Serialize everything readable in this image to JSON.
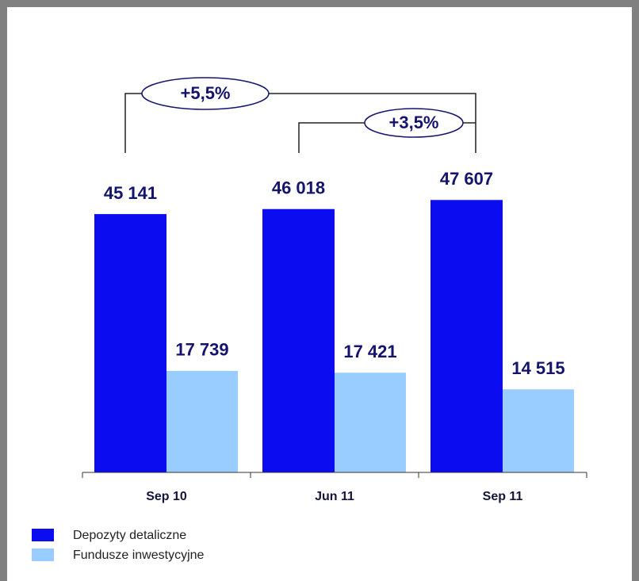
{
  "chart_data": {
    "type": "bar",
    "categories": [
      "Sep 10",
      "Jun 11",
      "Sep 11"
    ],
    "series": [
      {
        "name": "Depozyty detaliczne",
        "color": "#0c0cf0",
        "values": [
          45141,
          46018,
          47607
        ],
        "value_labels": [
          "45 141",
          "46 018",
          "47 607"
        ]
      },
      {
        "name": "Fundusze inwestycyjne",
        "color": "#99ccff",
        "values": [
          17739,
          17421,
          14515
        ],
        "value_labels": [
          "17 739",
          "17 421",
          "14 515"
        ]
      }
    ],
    "ylim": [
      0,
      50000
    ],
    "annotations": [
      {
        "text": "+5,5%"
      },
      {
        "text": "+3,5%"
      }
    ]
  }
}
